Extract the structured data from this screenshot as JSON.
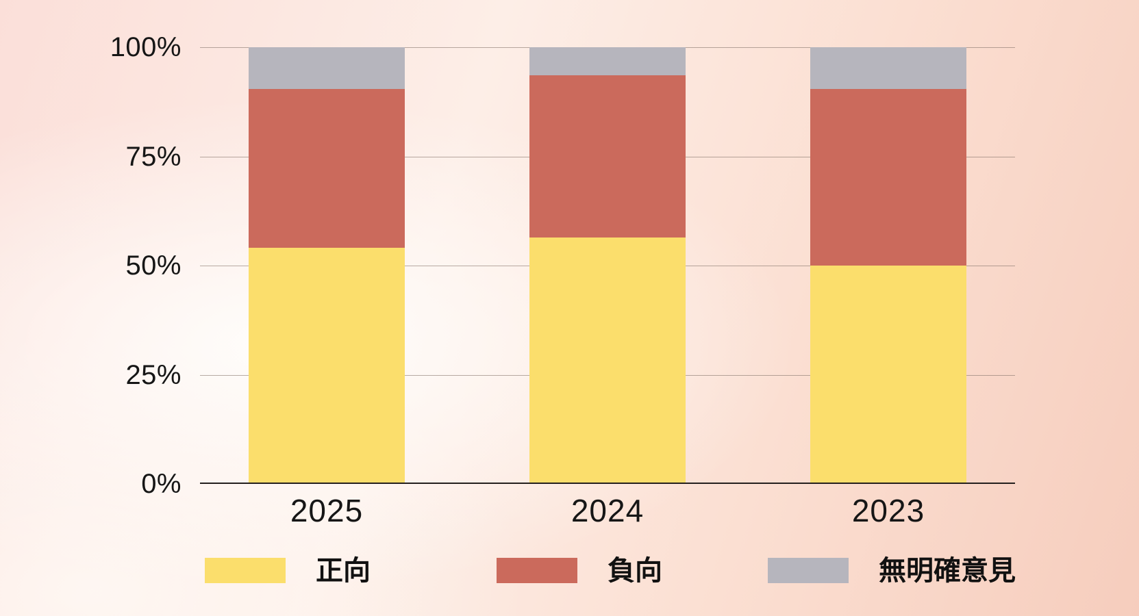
{
  "chart_data": {
    "type": "stacked-bar",
    "bar_orientation": "vertical",
    "unit": "%",
    "categories": [
      "2025",
      "2024",
      "2023"
    ],
    "series": [
      {
        "key": "positive",
        "name": "正向",
        "color": "#FBDE6C",
        "values": [
          54,
          56.5,
          50
        ]
      },
      {
        "key": "negative",
        "name": "負向",
        "color": "#CB6A5C",
        "values": [
          36.5,
          37,
          40.5
        ]
      },
      {
        "key": "no-clear-opinion",
        "name": "無明確意見",
        "color": "#B6B5BD",
        "values": [
          9.5,
          6.5,
          9.5
        ]
      }
    ],
    "y_axis": {
      "range": [
        0,
        100
      ],
      "tick_values": [
        100,
        75,
        50,
        25,
        0
      ],
      "tick_labels": [
        "100%",
        "75%",
        "50%",
        "25%",
        "0%"
      ]
    },
    "grid": true,
    "legend_position": "bottom",
    "colors": {
      "gridline": "rgba(122,106,97,0.55)",
      "axis_line": "#231f1d",
      "text": "#161616"
    }
  }
}
